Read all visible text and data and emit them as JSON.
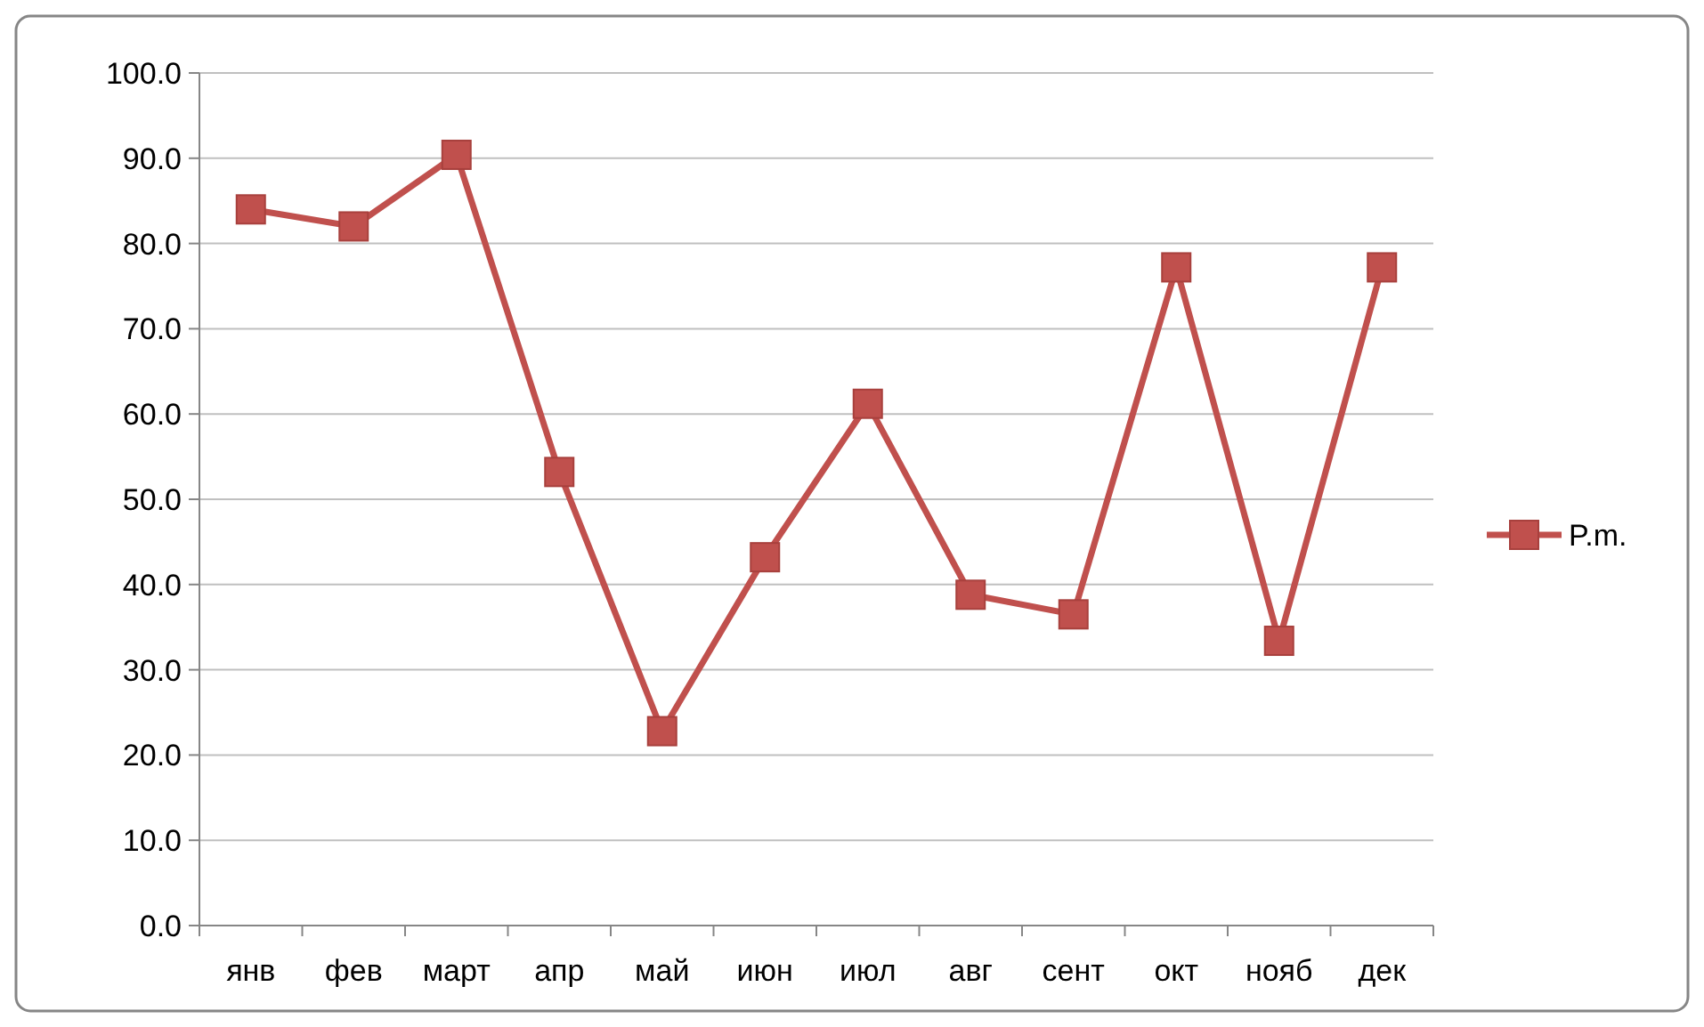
{
  "chart_data": {
    "type": "line",
    "categories": [
      "янв",
      "фев",
      "март",
      "апр",
      "май",
      "июн",
      "июл",
      "авг",
      "сент",
      "окт",
      "нояб",
      "дек"
    ],
    "series": [
      {
        "name": "P.m.",
        "color": "#c0504d",
        "values": [
          84,
          82,
          90.4,
          53.2,
          22.8,
          43.2,
          61.2,
          38.8,
          36.5,
          77.2,
          33.4,
          77.2
        ]
      }
    ],
    "ylim": [
      0,
      100
    ],
    "yticks": [
      {
        "value": 0,
        "label": "0.0"
      },
      {
        "value": 10,
        "label": "10.0"
      },
      {
        "value": 20,
        "label": "20.0"
      },
      {
        "value": 30,
        "label": "30.0"
      },
      {
        "value": 40,
        "label": "40.0"
      },
      {
        "value": 50,
        "label": "50.0"
      },
      {
        "value": 60,
        "label": "60.0"
      },
      {
        "value": 70,
        "label": "70.0"
      },
      {
        "value": 80,
        "label": "80.0"
      },
      {
        "value": 90,
        "label": "90.0"
      },
      {
        "value": 100,
        "label": "100.0"
      }
    ],
    "grid": "y",
    "legend": "right",
    "marker": "square",
    "line_style": "solid"
  }
}
